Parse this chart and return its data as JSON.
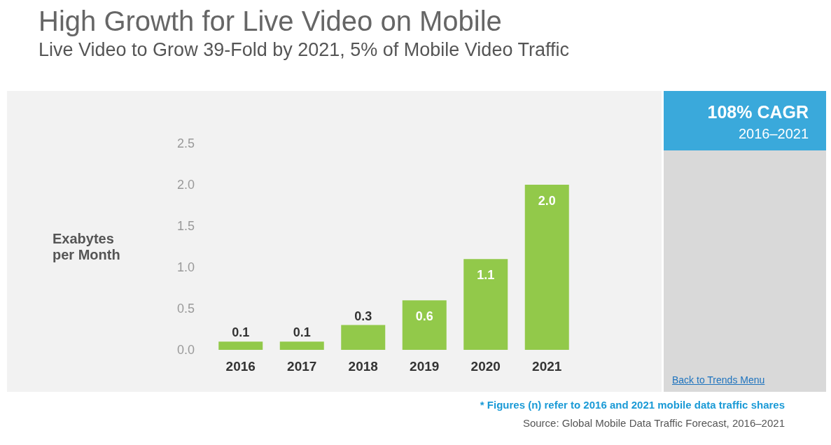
{
  "chart_data": {
    "type": "bar",
    "title": "High Growth for Live Video on Mobile",
    "subtitle": "Live Video to Grow 39-Fold by 2021, 5% of Mobile Video Traffic",
    "ylabel": "Exabytes per Month",
    "categories": [
      "2016",
      "2017",
      "2018",
      "2019",
      "2020",
      "2021"
    ],
    "values": [
      0.1,
      0.1,
      0.3,
      0.6,
      1.1,
      2.0
    ],
    "value_labels": [
      "0.1",
      "0.1",
      "0.3",
      "0.6",
      "1.1",
      "2.0"
    ],
    "color": "#92c94a",
    "ylim": [
      0,
      2.5
    ],
    "yticks": [
      {
        "value": 0,
        "label": "0.0"
      },
      0.5,
      {
        "value": 1,
        "label": "1.0"
      },
      1.5,
      {
        "value": 2,
        "label": "2.0"
      },
      2.5
    ],
    "grid": false,
    "annotations": [
      "108% CAGR",
      "2016–2021",
      "Back to Trends Menu",
      "* Figures (n) refer to 2016 and 2021 mobile data traffic shares",
      "Source: Global Mobile Data Traffic Forecast, 2016–2021"
    ]
  }
}
